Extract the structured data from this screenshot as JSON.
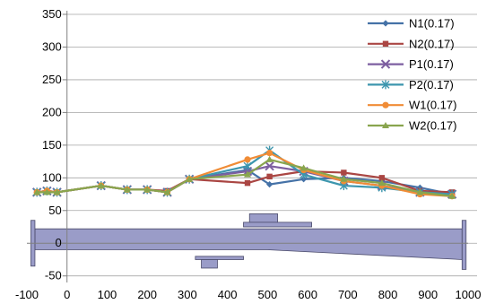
{
  "chart_data": {
    "type": "line",
    "title": "",
    "xlabel": "",
    "ylabel": "",
    "xlim": [
      -100,
      1000
    ],
    "ylim": [
      -60,
      350
    ],
    "x_ticks": [
      -100,
      0,
      100,
      200,
      300,
      400,
      500,
      600,
      700,
      800,
      900,
      1000
    ],
    "y_ticks": [
      -50,
      0,
      50,
      100,
      150,
      200,
      250,
      300,
      350
    ],
    "x_tick_labels": [
      "-100",
      "0",
      "100",
      "200",
      "300",
      "400",
      "500",
      "600",
      "700",
      "800",
      "900",
      "1000"
    ],
    "y_tick_labels": [
      "-50",
      "0",
      "50",
      "100",
      "150",
      "200",
      "250",
      "300",
      "350"
    ],
    "grid": "horizontal",
    "legend_position": "top-right",
    "series": [
      {
        "name": "N1(0.17)",
        "color": "#4572a7",
        "marker": "diamond",
        "x": [
          -75,
          -50,
          -25,
          85,
          150,
          200,
          250,
          305,
          450,
          505,
          590,
          690,
          785,
          880,
          960
        ],
        "y": [
          78,
          80,
          78,
          88,
          82,
          82,
          78,
          98,
          112,
          90,
          98,
          100,
          95,
          85,
          75
        ]
      },
      {
        "name": "N2(0.17)",
        "color": "#aa4643",
        "marker": "square",
        "x": [
          -75,
          -50,
          -25,
          85,
          150,
          200,
          250,
          305,
          450,
          505,
          590,
          690,
          785,
          880,
          960
        ],
        "y": [
          78,
          80,
          78,
          88,
          82,
          82,
          80,
          98,
          92,
          102,
          110,
          108,
          100,
          80,
          78
        ]
      },
      {
        "name": "P1(0.17)",
        "color": "#7d5fa0",
        "marker": "x",
        "x": [
          -75,
          -50,
          -25,
          85,
          150,
          200,
          250,
          305,
          450,
          505,
          590,
          690,
          785,
          880,
          960
        ],
        "y": [
          78,
          80,
          78,
          88,
          82,
          82,
          78,
          98,
          110,
          118,
          110,
          95,
          88,
          78,
          75
        ]
      },
      {
        "name": "P2(0.17)",
        "color": "#3d96ae",
        "marker": "asterisk",
        "x": [
          -75,
          -50,
          -25,
          85,
          150,
          200,
          250,
          305,
          450,
          505,
          590,
          690,
          785,
          880,
          960
        ],
        "y": [
          78,
          80,
          78,
          88,
          82,
          82,
          78,
          98,
          118,
          142,
          105,
          88,
          85,
          78,
          75
        ]
      },
      {
        "name": "W1(0.17)",
        "color": "#f08c36",
        "marker": "circle",
        "x": [
          -75,
          -50,
          -25,
          85,
          150,
          200,
          250,
          305,
          450,
          505,
          590,
          690,
          785,
          880,
          960
        ],
        "y": [
          78,
          80,
          78,
          88,
          82,
          82,
          78,
          98,
          128,
          138,
          112,
          95,
          88,
          75,
          72
        ]
      },
      {
        "name": "W2(0.17)",
        "color": "#89a54e",
        "marker": "triangle",
        "x": [
          -75,
          -50,
          -25,
          85,
          150,
          200,
          250,
          305,
          450,
          505,
          590,
          690,
          785,
          880,
          960
        ],
        "y": [
          78,
          78,
          78,
          88,
          82,
          82,
          78,
          98,
          105,
          128,
          115,
          98,
          92,
          78,
          72
        ]
      }
    ],
    "diagram": {
      "fill": "#9a9cc8",
      "stroke": "#4a4a6a",
      "shapes": [
        {
          "kind": "left-flange",
          "x": [
            -90,
            -80
          ],
          "y": [
            -35,
            35
          ]
        },
        {
          "kind": "right-flange",
          "x": [
            985,
            995
          ],
          "y": [
            -40,
            35
          ]
        },
        {
          "kind": "upper-boss",
          "x": [
            455,
            525
          ],
          "y": [
            32,
            45
          ]
        },
        {
          "kind": "upper-plate",
          "x": [
            440,
            610
          ],
          "y": [
            25,
            32
          ]
        },
        {
          "kind": "lower-plate",
          "x": [
            320,
            440
          ],
          "y": [
            -20,
            -25
          ]
        },
        {
          "kind": "lower-boss",
          "x": [
            335,
            375
          ],
          "y": [
            -25,
            -38
          ]
        }
      ],
      "body_polygon": [
        [
          -80,
          22
        ],
        [
          985,
          22
        ],
        [
          985,
          -25
        ],
        [
          500,
          -10
        ],
        [
          -80,
          -10
        ]
      ]
    }
  }
}
